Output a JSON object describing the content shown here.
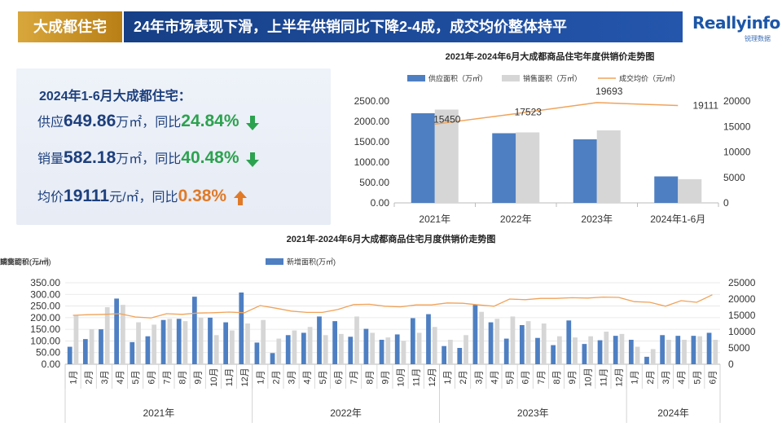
{
  "header": {
    "badge": "大成都住宅",
    "title": "24年市场表现下滑，上半年供销同比下降2-4成，成交均价整体持平",
    "logo_main": "Reallyinfo",
    "logo_sub": "锐理数据"
  },
  "summary": {
    "title": "2024年1-6月大成都住宅：",
    "supply": {
      "prefix": "供应",
      "value": "649.86",
      "unit": "万㎡，同比",
      "pct": "24.84%",
      "trend": "down"
    },
    "sales": {
      "prefix": "销量",
      "value": "582.18",
      "unit": "万㎡，同比",
      "pct": "40.48%",
      "trend": "down"
    },
    "price": {
      "prefix": "均价",
      "value": "19111",
      "unit": "元/㎡，同比",
      "pct": "0.38%",
      "trend": "up"
    }
  },
  "colors": {
    "supply": "#4e7fc2",
    "sales": "#d6d6d6",
    "price": "#f0a35a",
    "down": "#2ca24f",
    "up": "#e07a28"
  },
  "chart_data": [
    {
      "type": "bar",
      "title": "2021年-2024年6月大成都商品住宅年度供销价走势图",
      "categories": [
        "2021年",
        "2022年",
        "2023年",
        "2024年1-6月"
      ],
      "series": [
        {
          "name": "供应面积（万㎡）",
          "kind": "bar",
          "values": [
            2200,
            1710,
            1560,
            650
          ]
        },
        {
          "name": "销售面积（万㎡）",
          "kind": "bar",
          "values": [
            2290,
            1730,
            1780,
            582
          ]
        },
        {
          "name": "成交均价（元/㎡）",
          "kind": "line",
          "axis": "right",
          "values": [
            15450,
            17523,
            19693,
            19111
          ]
        }
      ],
      "ylim": [
        0,
        2500
      ],
      "y_ticks": [
        "0.00",
        "500.00",
        "1000.00",
        "1500.00",
        "2000.00",
        "2500.00"
      ],
      "y2lim": [
        0,
        20000
      ],
      "y2_ticks": [
        "0",
        "5000",
        "10000",
        "15000",
        "20000"
      ],
      "data_labels": [
        "15450",
        "17523",
        "19693",
        "19111"
      ],
      "legend": "top"
    },
    {
      "type": "bar",
      "title": "2021年-2024年6月大成都商品住宅月度供销价走势图",
      "categories": [
        "1月",
        "2月",
        "3月",
        "4月",
        "5月",
        "6月",
        "7月",
        "8月",
        "9月",
        "10月",
        "11月",
        "12月",
        "1月",
        "2月",
        "3月",
        "4月",
        "5月",
        "6月",
        "7月",
        "8月",
        "9月",
        "10月",
        "11月",
        "12月",
        "1月",
        "2月",
        "3月",
        "4月",
        "5月",
        "6月",
        "7月",
        "8月",
        "9月",
        "10月",
        "11月",
        "12月",
        "1月",
        "2月",
        "3月",
        "4月",
        "5月",
        "6月"
      ],
      "groups": [
        {
          "name": "2021年",
          "count": 12
        },
        {
          "name": "2022年",
          "count": 12
        },
        {
          "name": "2023年",
          "count": 12
        },
        {
          "name": "2024年",
          "count": 6
        }
      ],
      "series": [
        {
          "name": "新增面积(万㎡)",
          "kind": "bar",
          "values": [
            75,
            108,
            150,
            282,
            95,
            120,
            190,
            195,
            290,
            200,
            180,
            308,
            93,
            48,
            125,
            135,
            205,
            185,
            118,
            152,
            105,
            128,
            198,
            215,
            78,
            70,
            255,
            180,
            110,
            168,
            113,
            82,
            188,
            87,
            103,
            122,
            105,
            32,
            125,
            122,
            122,
            135
          ]
        },
        {
          "name": "销售面积(万㎡)",
          "kind": "bar",
          "values": [
            210,
            150,
            245,
            255,
            180,
            170,
            195,
            185,
            200,
            125,
            145,
            175,
            190,
            110,
            145,
            160,
            125,
            130,
            205,
            135,
            115,
            100,
            135,
            160,
            105,
            125,
            225,
            195,
            205,
            185,
            175,
            120,
            115,
            120,
            140,
            130,
            75,
            65,
            105,
            105,
            120,
            105
          ]
        },
        {
          "name": "成交均价(元/㎡)",
          "kind": "line",
          "axis": "right",
          "values": [
            15000,
            15200,
            15300,
            15500,
            14500,
            14200,
            15500,
            15300,
            15700,
            15800,
            16000,
            15800,
            18000,
            17200,
            16300,
            15900,
            15900,
            16800,
            18300,
            18400,
            17800,
            17600,
            18200,
            18200,
            18800,
            18700,
            18200,
            17800,
            20000,
            19800,
            20200,
            20200,
            20400,
            20300,
            20600,
            20500,
            19200,
            19000,
            17800,
            19500,
            19000,
            21300
          ]
        }
      ],
      "ylim": [
        0,
        350
      ],
      "y_ticks": [
        "0.00",
        "50.00",
        "100.00",
        "150.00",
        "200.00",
        "250.00",
        "300.00",
        "350.00"
      ],
      "y2lim": [
        0,
        25000
      ],
      "y2_ticks": [
        "0",
        "5000",
        "10000",
        "15000",
        "20000",
        "25000"
      ],
      "legend": "top"
    }
  ]
}
